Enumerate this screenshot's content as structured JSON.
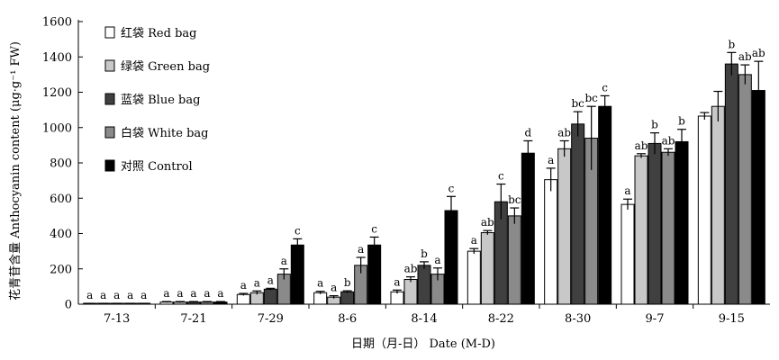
{
  "chart_data": {
    "type": "bar",
    "xlabel": "日期（月-日） Date (M-D)",
    "ylabel": "花青苷含量 Anthocyanin content (μg·g⁻¹ FW)",
    "ylim": [
      0,
      1600
    ],
    "yticks": [
      0,
      200,
      400,
      600,
      800,
      1000,
      1200,
      1400,
      1600
    ],
    "grid": false,
    "legend_position": "top-left",
    "categories": [
      "7-13",
      "7-21",
      "7-29",
      "8-6",
      "8-14",
      "8-22",
      "8-30",
      "9-7",
      "9-15"
    ],
    "series": [
      {
        "name": "红袋 Red bag",
        "color": "#ffffff",
        "values": [
          3,
          12,
          55,
          65,
          70,
          300,
          705,
          565,
          1065
        ],
        "errors": [
          2,
          3,
          6,
          8,
          10,
          15,
          65,
          30,
          20
        ],
        "labels": [
          "a",
          "a",
          "a",
          "a",
          "a",
          "a",
          "a",
          "a",
          ""
        ]
      },
      {
        "name": "绿袋 Green bag",
        "color": "#c8c8c8",
        "values": [
          3,
          12,
          65,
          40,
          140,
          405,
          880,
          840,
          1120
        ],
        "errors": [
          2,
          3,
          10,
          8,
          15,
          12,
          45,
          12,
          85
        ],
        "labels": [
          "a",
          "a",
          "a",
          "a",
          "ab",
          "ab",
          "ab",
          "ab",
          ""
        ]
      },
      {
        "name": "蓝袋 Blue bag",
        "color": "#404040",
        "values": [
          3,
          12,
          85,
          70,
          220,
          580,
          1020,
          910,
          1360
        ],
        "errors": [
          2,
          3,
          5,
          6,
          20,
          100,
          70,
          60,
          65
        ],
        "labels": [
          "a",
          "a",
          "a",
          "b",
          "b",
          "c",
          "bc",
          "b",
          "b"
        ]
      },
      {
        "name": "白袋 White bag",
        "color": "#8a8a8a",
        "values": [
          3,
          12,
          170,
          220,
          170,
          500,
          940,
          860,
          1300
        ],
        "errors": [
          2,
          3,
          30,
          45,
          35,
          45,
          180,
          20,
          55
        ],
        "labels": [
          "a",
          "a",
          "a",
          "a",
          "a",
          "bc",
          "bc",
          "ab",
          "ab"
        ]
      },
      {
        "name": "对照 Control",
        "color": "#000000",
        "values": [
          3,
          12,
          335,
          335,
          530,
          855,
          1120,
          920,
          1210
        ],
        "errors": [
          2,
          3,
          35,
          45,
          80,
          70,
          60,
          70,
          165
        ],
        "labels": [
          "a",
          "a",
          "c",
          "c",
          "c",
          "d",
          "c",
          "b",
          "ab"
        ]
      }
    ]
  }
}
